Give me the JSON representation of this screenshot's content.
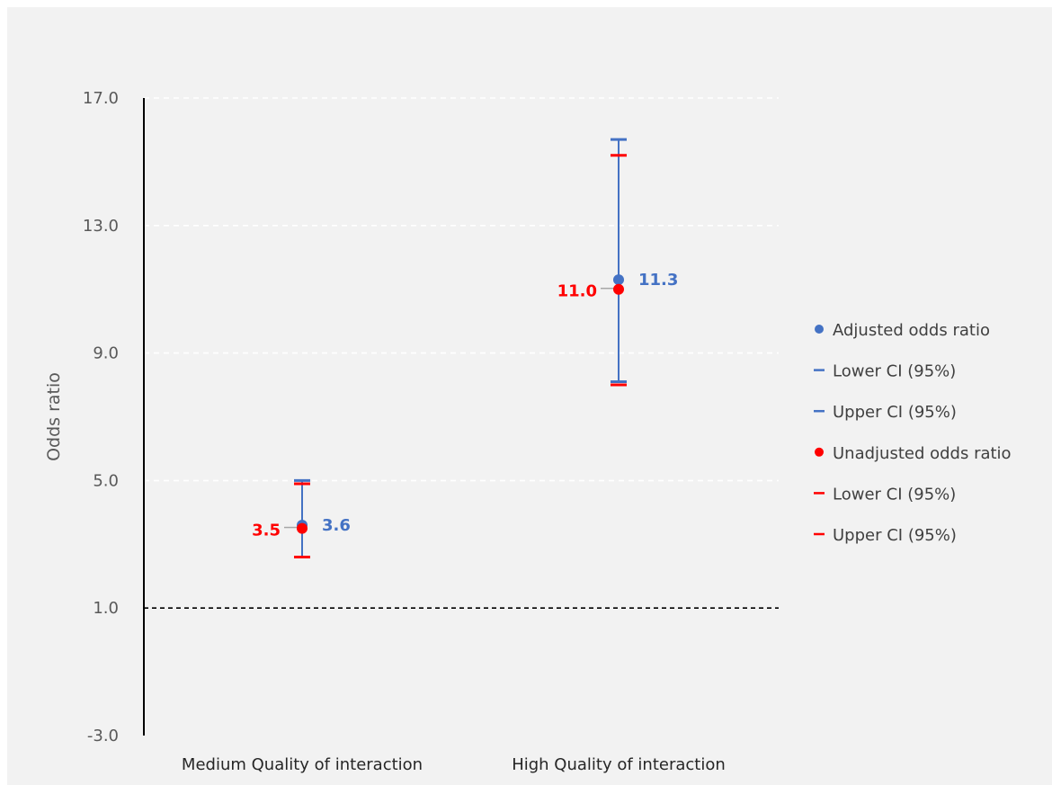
{
  "chart_data": {
    "type": "scatter",
    "title": "",
    "xlabel": "",
    "ylabel": "Odds ratio",
    "ylim": [
      -3,
      17
    ],
    "yticks": [
      "17.0",
      "13.0",
      "9.0",
      "5.0",
      "1.0",
      "-3.0"
    ],
    "ytick_values": [
      17,
      13,
      9,
      5,
      1,
      -3
    ],
    "categories": [
      "Medium Quality of interaction",
      "High Quality of interaction"
    ],
    "reference_line": 1.0,
    "grid": true,
    "legend_position": "right",
    "series": [
      {
        "name": "Adjusted odds ratio",
        "values": [
          3.6,
          11.3
        ],
        "color": "#4472c4",
        "marker": "circle",
        "labels": [
          "3.6",
          "11.3"
        ]
      },
      {
        "name": "Lower CI (95%)",
        "values": [
          2.6,
          8.1
        ],
        "color": "#4472c4",
        "marker": "dash"
      },
      {
        "name": "Upper CI (95%)",
        "values": [
          5.0,
          15.7
        ],
        "color": "#4472c4",
        "marker": "dash"
      },
      {
        "name": "Unadjusted odds ratio",
        "values": [
          3.5,
          11.0
        ],
        "color": "#ff0000",
        "marker": "circle",
        "labels": [
          "3.5",
          "11.0"
        ]
      },
      {
        "name": "Lower CI (95%)",
        "values": [
          2.6,
          8.0
        ],
        "color": "#ff0000",
        "marker": "dash"
      },
      {
        "name": "Upper CI (95%)",
        "values": [
          4.9,
          15.2
        ],
        "color": "#ff0000",
        "marker": "dash"
      }
    ]
  }
}
